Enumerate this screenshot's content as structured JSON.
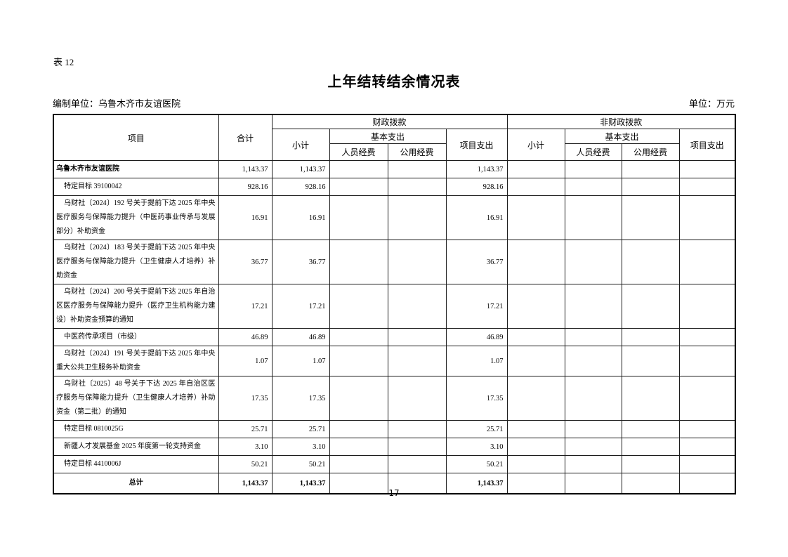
{
  "page": {
    "table_label": "表 12",
    "title": "上年结转结余情况表",
    "prepared_by": "编制单位：乌鲁木齐市友谊医院",
    "unit_label": "单位：万元",
    "page_number": "17"
  },
  "table": {
    "header": {
      "item": "项目",
      "total": "合计",
      "fiscal": "财政拨款",
      "non_fiscal": "非财政拨款",
      "subtotal": "小计",
      "basic_expenditure": "基本支出",
      "personnel_funds": "人员经费",
      "public_funds": "公用经费",
      "project_expenditure": "项目支出"
    },
    "rows": [
      {
        "label": "乌鲁木齐市友谊医院",
        "style": "bold-left",
        "values": [
          "1,143.37",
          "1,143.37",
          "",
          "",
          "1,143.37",
          "",
          "",
          "",
          ""
        ]
      },
      {
        "label": "特定目标 39100042",
        "style": "",
        "values": [
          "928.16",
          "928.16",
          "",
          "",
          "928.16",
          "",
          "",
          "",
          ""
        ]
      },
      {
        "label": "乌财社〔2024〕192 号关于提前下达 2025 年中央医疗服务与保障能力提升（中医药事业传承与发展部分）补助资金",
        "style": "",
        "values": [
          "16.91",
          "16.91",
          "",
          "",
          "16.91",
          "",
          "",
          "",
          ""
        ]
      },
      {
        "label": "乌财社〔2024〕183 号关于提前下达 2025 年中央医疗服务与保障能力提升（卫生健康人才培养）补助资金",
        "style": "",
        "values": [
          "36.77",
          "36.77",
          "",
          "",
          "36.77",
          "",
          "",
          "",
          ""
        ]
      },
      {
        "label": "乌财社〔2024〕200 号关于提前下达 2025 年自治区医疗服务与保障能力提升（医疗卫生机构能力建设）补助资金预算的通知",
        "style": "",
        "values": [
          "17.21",
          "17.21",
          "",
          "",
          "17.21",
          "",
          "",
          "",
          ""
        ]
      },
      {
        "label": "中医药传承项目（市级）",
        "style": "",
        "values": [
          "46.89",
          "46.89",
          "",
          "",
          "46.89",
          "",
          "",
          "",
          ""
        ]
      },
      {
        "label": "乌财社〔2024〕191 号关于提前下达 2025 年中央重大公共卫生服务补助资金",
        "style": "",
        "values": [
          "1.07",
          "1.07",
          "",
          "",
          "1.07",
          "",
          "",
          "",
          ""
        ]
      },
      {
        "label": "乌财社〔2025〕48 号关于下达 2025 年自治区医疗服务与保障能力提升（卫生健康人才培养）补助资金（第二批）的通知",
        "style": "",
        "values": [
          "17.35",
          "17.35",
          "",
          "",
          "17.35",
          "",
          "",
          "",
          ""
        ]
      },
      {
        "label": "特定目标 0810025G",
        "style": "",
        "values": [
          "25.71",
          "25.71",
          "",
          "",
          "25.71",
          "",
          "",
          "",
          ""
        ]
      },
      {
        "label": "新疆人才发展基金 2025 年度第一轮支持资金",
        "style": "",
        "values": [
          "3.10",
          "3.10",
          "",
          "",
          "3.10",
          "",
          "",
          "",
          ""
        ]
      },
      {
        "label": "特定目标 4410006J",
        "style": "",
        "values": [
          "50.21",
          "50.21",
          "",
          "",
          "50.21",
          "",
          "",
          "",
          ""
        ]
      },
      {
        "label": "总计",
        "style": "bold-center",
        "values": [
          "1,143.37",
          "1,143.37",
          "",
          "",
          "1,143.37",
          "",
          "",
          "",
          ""
        ]
      }
    ]
  }
}
